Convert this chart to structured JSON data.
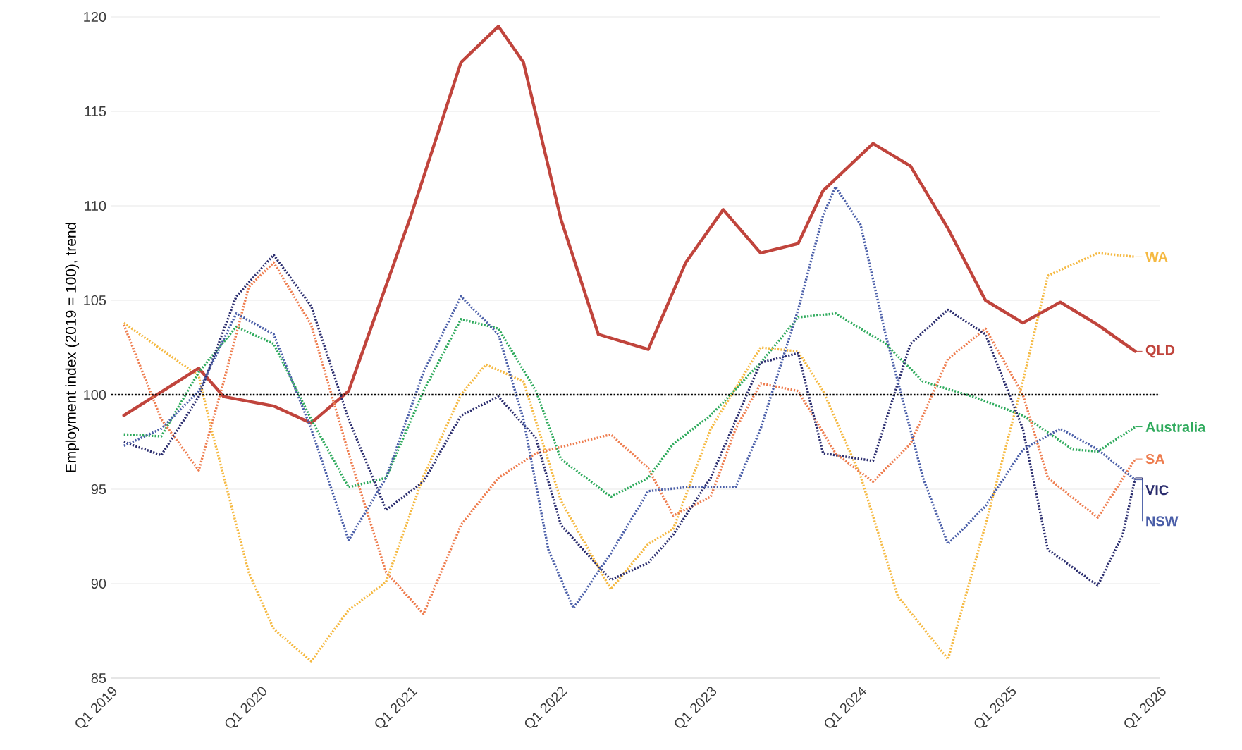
{
  "chart_data": {
    "type": "line",
    "ylabel": "Employment index (2019 = 100), trend",
    "xlim": [
      "2019-01",
      "2026-01"
    ],
    "ylim": [
      85,
      120
    ],
    "xticks": [
      {
        "value": "2019-01",
        "label": "Q1 2019"
      },
      {
        "value": "2020-01",
        "label": "Q1 2020"
      },
      {
        "value": "2021-01",
        "label": "Q1 2021"
      },
      {
        "value": "2022-01",
        "label": "Q1 2022"
      },
      {
        "value": "2023-01",
        "label": "Q1 2023"
      },
      {
        "value": "2024-01",
        "label": "Q1 2024"
      },
      {
        "value": "2025-01",
        "label": "Q1 2025"
      },
      {
        "value": "2026-01",
        "label": "Q1 2026"
      }
    ],
    "yticks": [
      85,
      90,
      95,
      100,
      105,
      110,
      115,
      120
    ],
    "grid": "y",
    "legend": "right",
    "marker": "none",
    "ref_lines": [
      {
        "axis": "y",
        "value": 100,
        "color": "#000000",
        "line_style": "dotted"
      }
    ],
    "series": [
      {
        "name": "WA",
        "color": "#f5b942",
        "line_style": "dotted",
        "x": [
          "2019-02",
          "2019-08",
          "2019-09",
          "2019-12",
          "2020-02",
          "2020-05",
          "2020-08",
          "2020-11",
          "2021-02",
          "2021-05",
          "2021-07",
          "2021-10",
          "2022-01",
          "2022-05",
          "2022-08",
          "2022-10",
          "2023-01",
          "2023-05",
          "2023-08",
          "2023-10",
          "2024-01",
          "2024-04",
          "2024-08",
          "2024-11",
          "2025-02",
          "2025-04",
          "2025-08",
          "2025-11"
        ],
        "values": [
          103.8,
          101.0,
          98.2,
          90.6,
          87.6,
          85.9,
          88.6,
          90.1,
          95.7,
          100.0,
          101.6,
          100.7,
          94.4,
          89.7,
          92.1,
          92.9,
          98.2,
          102.5,
          102.3,
          100.2,
          95.7,
          89.3,
          86.0,
          93.1,
          100.7,
          106.3,
          107.5,
          107.3
        ]
      },
      {
        "name": "QLD",
        "color": "#c0443c",
        "line_style": "solid",
        "x": [
          "2019-02",
          "2019-08",
          "2019-10",
          "2020-02",
          "2020-05",
          "2020-08",
          "2021-01",
          "2021-05",
          "2021-08",
          "2021-10",
          "2022-01",
          "2022-04",
          "2022-08",
          "2022-11",
          "2023-02",
          "2023-05",
          "2023-08",
          "2023-10",
          "2024-02",
          "2024-05",
          "2024-08",
          "2024-11",
          "2025-02",
          "2025-05",
          "2025-08",
          "2025-11"
        ],
        "values": [
          98.9,
          101.4,
          99.9,
          99.4,
          98.5,
          100.2,
          109.5,
          117.6,
          119.5,
          117.6,
          109.3,
          103.2,
          102.4,
          107.0,
          109.8,
          107.5,
          108.0,
          110.8,
          113.3,
          112.1,
          108.8,
          105.0,
          103.8,
          104.9,
          103.7,
          102.3
        ]
      },
      {
        "name": "Australia",
        "color": "#2eaa5c",
        "line_style": "dotted",
        "x": [
          "2019-02",
          "2019-05",
          "2019-08",
          "2019-11",
          "2020-02",
          "2020-05",
          "2020-08",
          "2020-11",
          "2021-02",
          "2021-05",
          "2021-08",
          "2021-11",
          "2022-01",
          "2022-05",
          "2022-08",
          "2022-10",
          "2023-01",
          "2023-05",
          "2023-08",
          "2023-11",
          "2024-03",
          "2024-06",
          "2024-10",
          "2025-02",
          "2025-06",
          "2025-08",
          "2025-11"
        ],
        "values": [
          97.9,
          97.8,
          101.2,
          103.6,
          102.7,
          98.7,
          95.1,
          95.6,
          100.2,
          104.0,
          103.5,
          100.2,
          96.6,
          94.6,
          95.6,
          97.4,
          98.9,
          101.7,
          104.1,
          104.3,
          102.7,
          100.7,
          99.9,
          98.9,
          97.1,
          97.0,
          98.3
        ]
      },
      {
        "name": "SA",
        "color": "#ee7d4f",
        "line_style": "dotted",
        "x": [
          "2019-02",
          "2019-05",
          "2019-08",
          "2019-10",
          "2019-12",
          "2020-02",
          "2020-05",
          "2020-08",
          "2020-11",
          "2021-02",
          "2021-05",
          "2021-08",
          "2021-11",
          "2022-05",
          "2022-08",
          "2022-10",
          "2023-01",
          "2023-03",
          "2023-05",
          "2023-08",
          "2023-11",
          "2024-02",
          "2024-05",
          "2024-08",
          "2024-11",
          "2025-02",
          "2025-04",
          "2025-08",
          "2025-11"
        ],
        "values": [
          103.7,
          98.7,
          96.0,
          100.7,
          105.7,
          107.0,
          103.7,
          96.9,
          90.6,
          88.4,
          93.1,
          95.6,
          96.9,
          97.9,
          96.1,
          93.6,
          94.6,
          98.2,
          100.6,
          100.2,
          96.9,
          95.4,
          97.4,
          101.9,
          103.5,
          100.0,
          95.6,
          93.5,
          96.6
        ]
      },
      {
        "name": "VIC",
        "color": "#2b2d6e",
        "line_style": "dotted",
        "x": [
          "2019-02",
          "2019-05",
          "2019-08",
          "2019-11",
          "2020-02",
          "2020-05",
          "2020-08",
          "2020-11",
          "2021-02",
          "2021-05",
          "2021-08",
          "2021-11",
          "2022-01",
          "2022-05",
          "2022-08",
          "2022-10",
          "2023-01",
          "2023-05",
          "2023-08",
          "2023-10",
          "2024-02",
          "2024-05",
          "2024-08",
          "2024-11",
          "2025-02",
          "2025-04",
          "2025-08",
          "2025-10",
          "2025-11"
        ],
        "values": [
          97.5,
          96.8,
          99.9,
          105.2,
          107.4,
          104.7,
          98.7,
          93.9,
          95.4,
          98.9,
          99.9,
          97.7,
          93.1,
          90.2,
          91.1,
          92.6,
          95.6,
          101.7,
          102.2,
          96.9,
          96.5,
          102.7,
          104.5,
          103.2,
          98.2,
          91.8,
          89.9,
          92.6,
          95.6
        ]
      },
      {
        "name": "NSW",
        "color": "#4a5ea8",
        "line_style": "dotted",
        "x": [
          "2019-02",
          "2019-05",
          "2019-08",
          "2019-11",
          "2020-02",
          "2020-05",
          "2020-08",
          "2020-11",
          "2021-02",
          "2021-05",
          "2021-08",
          "2021-10",
          "2021-12",
          "2022-02",
          "2022-05",
          "2022-08",
          "2022-11",
          "2023-03",
          "2023-05",
          "2023-08",
          "2023-10",
          "2023-11",
          "2024-01",
          "2024-03",
          "2024-06",
          "2024-08",
          "2024-11",
          "2025-02",
          "2025-05",
          "2025-08",
          "2025-11"
        ],
        "values": [
          97.3,
          98.2,
          100.2,
          104.3,
          103.2,
          98.2,
          92.3,
          95.6,
          101.2,
          105.2,
          103.2,
          98.7,
          91.8,
          88.7,
          91.6,
          94.9,
          95.1,
          95.1,
          98.2,
          104.5,
          109.5,
          111.0,
          109.0,
          103.2,
          95.6,
          92.1,
          94.1,
          97.1,
          98.2,
          97.1,
          95.5
        ]
      }
    ]
  }
}
